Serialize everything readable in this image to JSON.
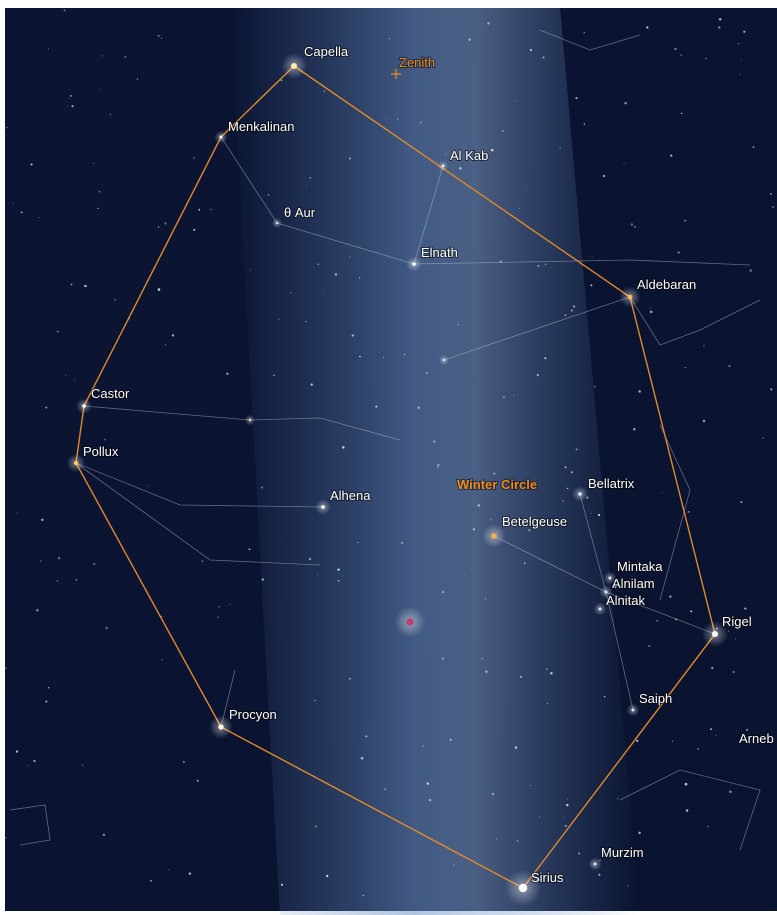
{
  "stars": [
    "Capella",
    "Menkalinan",
    "Al Kab",
    "θ Aur",
    "Elnath",
    "Aldebaran",
    "Castor",
    "Pollux",
    "Alhena",
    "Bellatrix",
    "Betelgeuse",
    "Mintaka",
    "Alnilam",
    "Alnitak",
    "Rigel",
    "Procyon",
    "Saiph",
    "Arneb",
    "Sirius",
    "Murzim"
  ],
  "zenith_label": "Zenith",
  "asterism_label": "Winter Circle"
}
